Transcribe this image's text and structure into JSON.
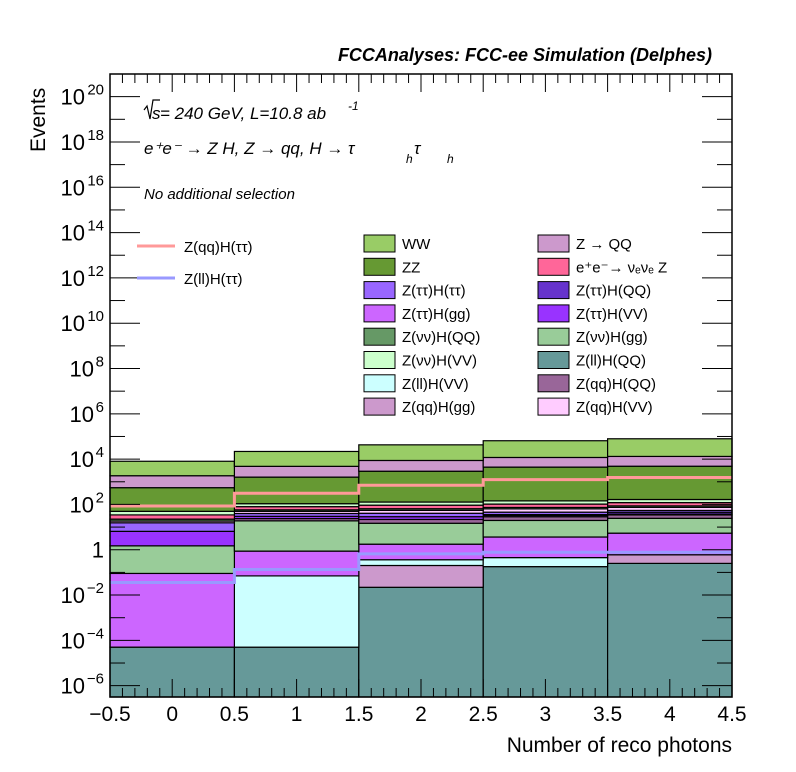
{
  "chart_data": {
    "type": "bar",
    "subtype": "stacked-histogram",
    "title": "FCCAnalyses: FCC-ee Simulation (Delphes)",
    "xlabel": "Number of reco photons",
    "ylabel": "Events",
    "yscale": "log",
    "xlim": [
      -0.5,
      4.5
    ],
    "ylim_log10": [
      -6.5,
      21
    ],
    "x_ticks": [
      "-0.5",
      "0",
      "0.5",
      "1",
      "1.5",
      "2",
      "2.5",
      "3",
      "3.5",
      "4",
      "4.5"
    ],
    "x_tick_values": [
      -0.5,
      0,
      0.5,
      1,
      1.5,
      2,
      2.5,
      3,
      3.5,
      4,
      4.5
    ],
    "y_ticks": [
      {
        "base": "10",
        "exp": "20",
        "log10": 20
      },
      {
        "base": "10",
        "exp": "18",
        "log10": 18
      },
      {
        "base": "10",
        "exp": "16",
        "log10": 16
      },
      {
        "base": "10",
        "exp": "14",
        "log10": 14
      },
      {
        "base": "10",
        "exp": "12",
        "log10": 12
      },
      {
        "base": "10",
        "exp": "10",
        "log10": 10
      },
      {
        "base": "10",
        "exp": "8",
        "log10": 8
      },
      {
        "base": "10",
        "exp": "6",
        "log10": 6
      },
      {
        "base": "10",
        "exp": "4",
        "log10": 4
      },
      {
        "base": "10",
        "exp": "2",
        "log10": 2
      },
      {
        "base": "1",
        "exp": "",
        "log10": 0
      },
      {
        "base": "10",
        "exp": "−2",
        "log10": -2
      },
      {
        "base": "10",
        "exp": "−4",
        "log10": -4
      },
      {
        "base": "10",
        "exp": "−6",
        "log10": -6
      }
    ],
    "annotations": {
      "energy_prefix": "s",
      "energy_text": " = 240 GeV, L=10.8 ab",
      "lumi_exp": "-1",
      "process_text": "e⁺e⁻ → Z H, Z → qq, H → τ",
      "process_sub": "h",
      "process_tau2": "τ",
      "process_sub2": "h",
      "selection": "No additional selection"
    },
    "bin_edges": [
      -0.5,
      0.5,
      1.5,
      2.5,
      3.5,
      4.5
    ],
    "stack_order_bottom_to_top": "as listed in stack",
    "stack": [
      {
        "name": "Z(ll)H(QQ)",
        "color": "#669999",
        "values": [
          5e-05,
          5e-05,
          0.022,
          0.18,
          0.25
        ]
      },
      {
        "name": "Z(qq)H(gg)",
        "color": "#cc99cc",
        "values": [
          1e-07,
          1e-07,
          0.18,
          0.0,
          0.35
        ]
      },
      {
        "name": "Z(ll)H(VV)",
        "color": "#ccffff",
        "values": [
          1e-07,
          0.07,
          0.16,
          0.27,
          0.0
        ]
      },
      {
        "name": "Z(ττ)H(gg)",
        "color": "#cc66ff",
        "values": [
          0.09,
          0.8,
          1.4,
          3.2,
          4.8
        ]
      },
      {
        "name": "Z(νν)H(gg)",
        "color": "#99cc99",
        "values": [
          1.4,
          18,
          13,
          16,
          19
        ]
      },
      {
        "name": "Z(qq)H(QQ)",
        "color": "#996699",
        "values": [
          0.0,
          5,
          7,
          9,
          10
        ]
      },
      {
        "name": "Z(ττ)H(VV)",
        "color": "#9933ff",
        "values": [
          5,
          6,
          7,
          4,
          3
        ]
      },
      {
        "name": "Z(ττ)H(QQ)",
        "color": "#6633cc",
        "values": [
          0.0,
          0.0,
          0.0,
          3,
          8
        ]
      },
      {
        "name": "Z(ττ)H(ττ)",
        "color": "#9966ff",
        "values": [
          9,
          10,
          12,
          10,
          9
        ]
      },
      {
        "name": "Z(qq)H(VV)",
        "color": "#ffccff",
        "values": [
          3,
          10,
          14,
          18,
          20
        ]
      },
      {
        "name": "Z(νν)H(QQ)",
        "color": "#669966",
        "values": [
          4,
          8,
          10,
          10,
          12
        ]
      },
      {
        "name": "e⁺e⁻→ νₑνₑ Z",
        "color": "#ff6699",
        "values": [
          12,
          22,
          28,
          30,
          34
        ]
      },
      {
        "name": "Z(νν)H(VV)",
        "color": "#ccffcc",
        "values": [
          15,
          28,
          35,
          40,
          45
        ]
      },
      {
        "name": "ZZ",
        "color": "#669933",
        "values": [
          500,
          1500,
          2800,
          4300,
          4700
        ]
      },
      {
        "name": "Z → QQ",
        "color": "#cc99cc",
        "values": [
          1300,
          3200,
          5800,
          7400,
          8300
        ]
      },
      {
        "name": "WW",
        "color": "#99cc66",
        "values": [
          6200,
          17000,
          34000,
          53000,
          66000
        ]
      }
    ],
    "lines": [
      {
        "name": "Z(qq)H(ττ)",
        "color": "#ff9999",
        "values": [
          85,
          310,
          700,
          1250,
          1550
        ]
      },
      {
        "name": "Z(ll)H(ττ)",
        "color": "#9999ff",
        "values": [
          0.036,
          0.135,
          0.66,
          0.78,
          0.78
        ]
      }
    ],
    "legend": {
      "lines_column": [
        "Z(qq)H(ττ)",
        "Z(ll)H(ττ)"
      ],
      "column1": [
        {
          "label": "WW",
          "color": "#99cc66"
        },
        {
          "label": "ZZ",
          "color": "#669933"
        },
        {
          "label": "Z(ττ)H(ττ)",
          "color": "#9966ff"
        },
        {
          "label": "Z(ττ)H(gg)",
          "color": "#cc66ff"
        },
        {
          "label": "Z(νν)H(QQ)",
          "color": "#669966"
        },
        {
          "label": "Z(νν)H(VV)",
          "color": "#ccffcc"
        },
        {
          "label": "Z(ll)H(VV)",
          "color": "#ccffff"
        },
        {
          "label": "Z(qq)H(gg)",
          "color": "#cc99cc"
        }
      ],
      "column2": [
        {
          "label": "Z → QQ",
          "color": "#cc99cc"
        },
        {
          "label": "e⁺e⁻→ νₑνₑ Z",
          "color": "#ff6699"
        },
        {
          "label": "Z(ττ)H(QQ)",
          "color": "#6633cc"
        },
        {
          "label": "Z(ττ)H(VV)",
          "color": "#9933ff"
        },
        {
          "label": "Z(νν)H(gg)",
          "color": "#99cc99"
        },
        {
          "label": "Z(ll)H(QQ)",
          "color": "#669999"
        },
        {
          "label": "Z(qq)H(QQ)",
          "color": "#996699"
        },
        {
          "label": "Z(qq)H(VV)",
          "color": "#ffccff"
        }
      ],
      "placement": "upper-center"
    }
  }
}
